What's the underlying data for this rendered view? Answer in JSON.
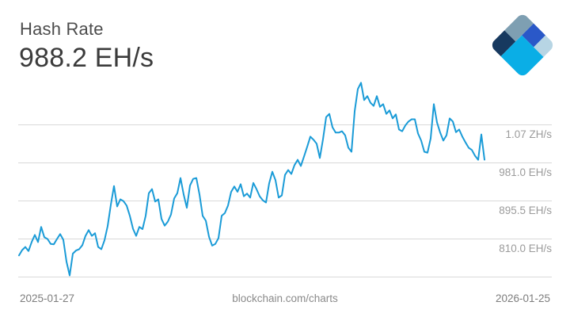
{
  "header": {
    "title": "Hash Rate",
    "current_value": "988.2 EH/s"
  },
  "logo": {
    "label": "blockchain-logo",
    "colors": {
      "slate": "#7E9FB2",
      "navy": "#17395F",
      "royal": "#2A58C8",
      "pale": "#B7D5E4",
      "cyan": "#0AAEE6"
    }
  },
  "chart_data": {
    "type": "line",
    "title": "Hash Rate",
    "current_value": "988.2 EH/s",
    "unit": "EH/s",
    "line_color": "#1A9BD7",
    "grid_color": "#d9d9d9",
    "legend_position": "none",
    "grid": "horizontal",
    "x_range": [
      "2025-01-27",
      "2026-01-25"
    ],
    "x_axis": {
      "start_label": "2025-01-27",
      "end_label": "2026-01-25"
    },
    "watermark": "blockchain.com/charts",
    "y_axis": {
      "unit_note": "gridlines every 85.5 EH/s; top tick shown as ZH/s",
      "ticks": [
        {
          "value": 1066.5,
          "label": "1.07 ZH/s"
        },
        {
          "value": 981.0,
          "label": "981.0 EH/s"
        },
        {
          "value": 895.5,
          "label": "895.5 EH/s"
        },
        {
          "value": 810.0,
          "label": "810.0 EH/s"
        },
        {
          "value": 724.5,
          "label": ""
        }
      ],
      "ylim": [
        724.5,
        1190
      ]
    },
    "values": [
      773,
      785,
      792,
      783,
      803,
      819,
      803,
      837,
      814,
      810,
      799,
      798,
      810,
      821,
      808,
      759,
      728,
      777,
      784,
      787,
      796,
      817,
      830,
      817,
      823,
      792,
      787,
      807,
      839,
      887,
      929,
      883,
      899,
      895,
      885,
      862,
      833,
      817,
      837,
      832,
      862,
      913,
      922,
      894,
      899,
      855,
      840,
      849,
      865,
      901,
      913,
      947,
      910,
      880,
      930,
      945,
      947,
      910,
      862,
      851,
      815,
      795,
      799,
      812,
      862,
      868,
      885,
      916,
      928,
      916,
      933,
      906,
      912,
      903,
      936,
      922,
      906,
      897,
      892,
      935,
      961,
      942,
      903,
      908,
      954,
      965,
      956,
      976,
      988,
      974,
      995,
      1017,
      1040,
      1033,
      1024,
      992,
      1034,
      1084,
      1091,
      1061,
      1049,
      1049,
      1052,
      1043,
      1015,
      1006,
      1097,
      1147,
      1161,
      1122,
      1131,
      1116,
      1109,
      1131,
      1107,
      1113,
      1091,
      1099,
      1081,
      1090,
      1056,
      1052,
      1065,
      1074,
      1079,
      1079,
      1047,
      1031,
      1006,
      1004,
      1036,
      1113,
      1072,
      1049,
      1031,
      1043,
      1081,
      1074,
      1050,
      1056,
      1040,
      1027,
      1015,
      1010,
      997,
      988,
      1045,
      988.2
    ]
  }
}
